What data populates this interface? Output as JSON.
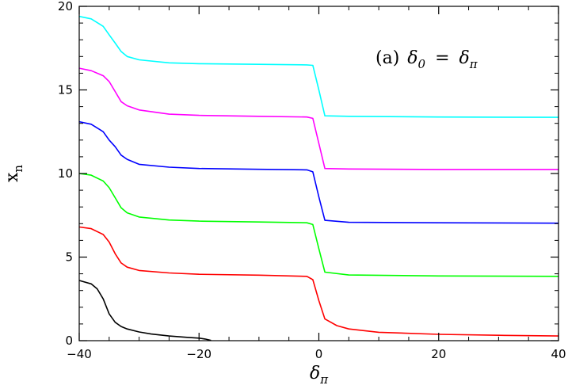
{
  "chart_data": {
    "type": "line",
    "xlabel": "δ",
    "xlabel_sub": "π",
    "ylabel": "x",
    "ylabel_sub": "n",
    "xlim": [
      -40,
      40
    ],
    "ylim": [
      0,
      20
    ],
    "xticks": [
      -40,
      -20,
      0,
      20,
      40
    ],
    "yticks": [
      0,
      5,
      10,
      15,
      20
    ],
    "grid": false,
    "annotation": {
      "prefix": "(a)",
      "lhs": "δ",
      "lhs_sub": "0",
      "eq": "=",
      "rhs": "δ",
      "rhs_sub": "π"
    },
    "series": [
      {
        "color": "#00ffff",
        "points": [
          [
            -40,
            19.4
          ],
          [
            -38,
            19.25
          ],
          [
            -36,
            18.8
          ],
          [
            -35,
            18.3
          ],
          [
            -34,
            17.8
          ],
          [
            -33,
            17.3
          ],
          [
            -32,
            17.0
          ],
          [
            -30,
            16.8
          ],
          [
            -25,
            16.62
          ],
          [
            -20,
            16.57
          ],
          [
            -10,
            16.53
          ],
          [
            -2,
            16.5
          ],
          [
            -1,
            16.47
          ],
          [
            0,
            15.0
          ],
          [
            1,
            13.45
          ],
          [
            5,
            13.42
          ],
          [
            20,
            13.38
          ],
          [
            40,
            13.36
          ]
        ]
      },
      {
        "color": "#ff00ff",
        "points": [
          [
            -40,
            16.3
          ],
          [
            -38,
            16.15
          ],
          [
            -36,
            15.85
          ],
          [
            -35,
            15.5
          ],
          [
            -34,
            14.9
          ],
          [
            -33,
            14.3
          ],
          [
            -32,
            14.05
          ],
          [
            -30,
            13.8
          ],
          [
            -25,
            13.55
          ],
          [
            -20,
            13.48
          ],
          [
            -10,
            13.42
          ],
          [
            -2,
            13.38
          ],
          [
            -1,
            13.3
          ],
          [
            0,
            11.8
          ],
          [
            1,
            10.3
          ],
          [
            5,
            10.27
          ],
          [
            20,
            10.24
          ],
          [
            40,
            10.24
          ]
        ]
      },
      {
        "color": "#0000ff",
        "points": [
          [
            -40,
            13.1
          ],
          [
            -38,
            12.95
          ],
          [
            -36,
            12.5
          ],
          [
            -35,
            12.0
          ],
          [
            -34,
            11.6
          ],
          [
            -33,
            11.1
          ],
          [
            -32,
            10.85
          ],
          [
            -30,
            10.55
          ],
          [
            -25,
            10.38
          ],
          [
            -20,
            10.3
          ],
          [
            -10,
            10.25
          ],
          [
            -2,
            10.22
          ],
          [
            -1,
            10.1
          ],
          [
            0,
            8.6
          ],
          [
            1,
            7.2
          ],
          [
            5,
            7.08
          ],
          [
            20,
            7.05
          ],
          [
            40,
            7.03
          ]
        ]
      },
      {
        "color": "#00ff00",
        "points": [
          [
            -40,
            10.0
          ],
          [
            -38,
            9.9
          ],
          [
            -36,
            9.55
          ],
          [
            -35,
            9.15
          ],
          [
            -34,
            8.55
          ],
          [
            -33,
            7.95
          ],
          [
            -32,
            7.65
          ],
          [
            -30,
            7.4
          ],
          [
            -25,
            7.22
          ],
          [
            -20,
            7.15
          ],
          [
            -10,
            7.1
          ],
          [
            -2,
            7.05
          ],
          [
            -1,
            6.95
          ],
          [
            0,
            5.5
          ],
          [
            1,
            4.1
          ],
          [
            5,
            3.93
          ],
          [
            20,
            3.87
          ],
          [
            40,
            3.85
          ]
        ]
      },
      {
        "color": "#ff0000",
        "points": [
          [
            -40,
            6.8
          ],
          [
            -38,
            6.7
          ],
          [
            -36,
            6.35
          ],
          [
            -35,
            5.9
          ],
          [
            -34,
            5.2
          ],
          [
            -33,
            4.65
          ],
          [
            -32,
            4.4
          ],
          [
            -30,
            4.2
          ],
          [
            -25,
            4.05
          ],
          [
            -20,
            3.97
          ],
          [
            -10,
            3.92
          ],
          [
            -2,
            3.85
          ],
          [
            -1,
            3.65
          ],
          [
            0,
            2.4
          ],
          [
            1,
            1.3
          ],
          [
            3,
            0.9
          ],
          [
            5,
            0.7
          ],
          [
            10,
            0.5
          ],
          [
            20,
            0.38
          ],
          [
            30,
            0.32
          ],
          [
            40,
            0.28
          ]
        ]
      },
      {
        "color": "#000000",
        "points": [
          [
            -40,
            3.6
          ],
          [
            -38,
            3.4
          ],
          [
            -37,
            3.1
          ],
          [
            -36,
            2.5
          ],
          [
            -35,
            1.6
          ],
          [
            -34,
            1.1
          ],
          [
            -33,
            0.85
          ],
          [
            -32,
            0.7
          ],
          [
            -30,
            0.52
          ],
          [
            -28,
            0.4
          ],
          [
            -25,
            0.28
          ],
          [
            -22,
            0.2
          ],
          [
            -20,
            0.15
          ],
          [
            -19,
            0.1
          ],
          [
            -18,
            0.02
          ]
        ]
      }
    ]
  }
}
